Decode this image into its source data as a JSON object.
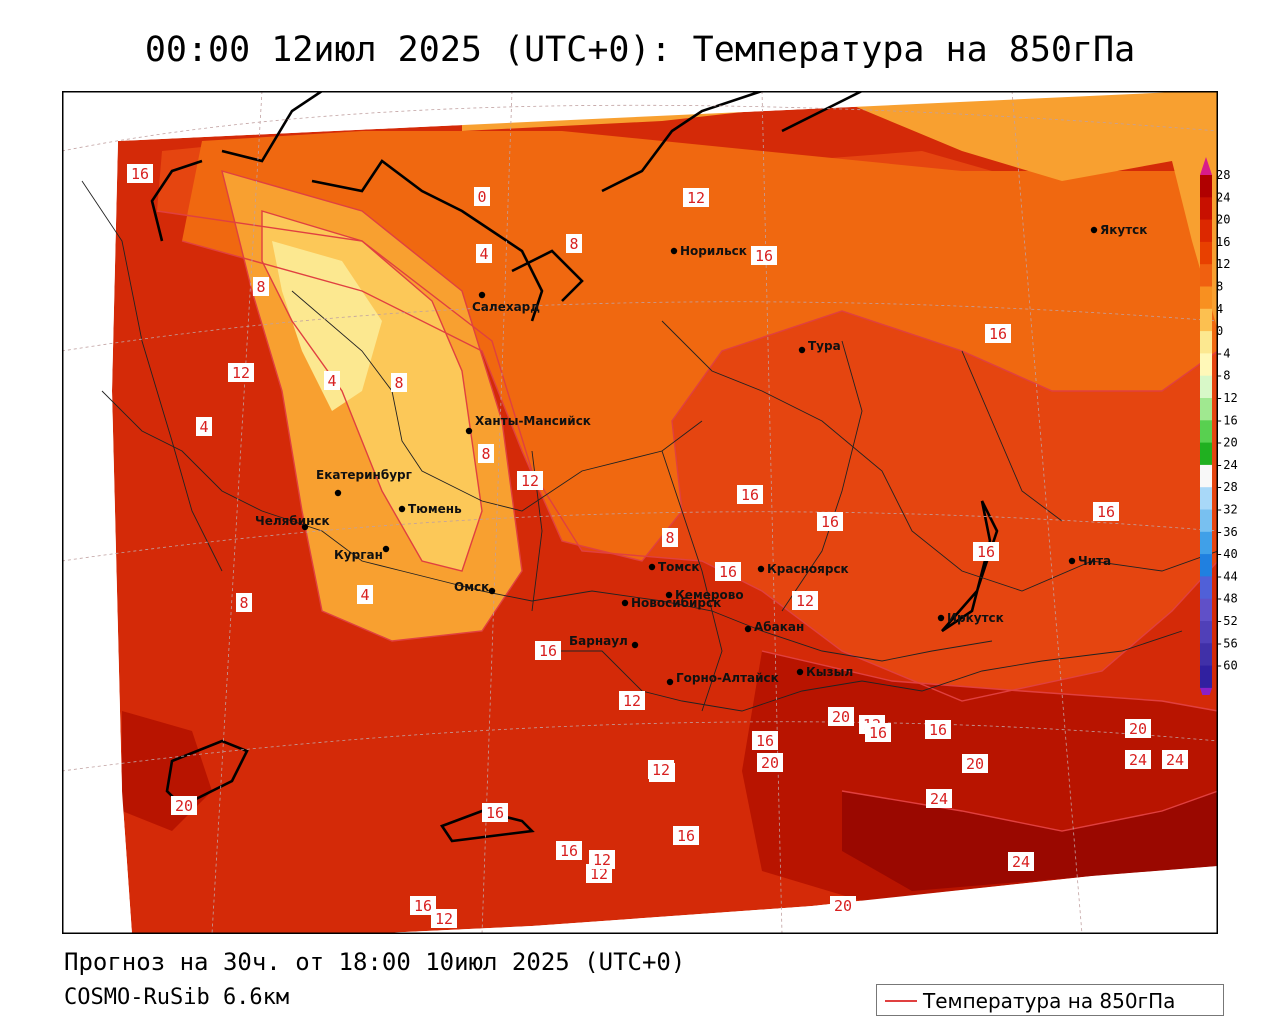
{
  "title": "00:00 12июл 2025 (UTC+0): Температура на 850гПа",
  "footer": {
    "forecast": "Прогноз на 30ч. от 18:00 10июл 2025 (UTC+0)",
    "model": "COSMO-RuSib 6.6км"
  },
  "legend": {
    "label": "Температура на 850гПа"
  },
  "colors": {
    "border": "#000000",
    "isoline": "#e04040",
    "city_dot": "#000000"
  },
  "colorbar": {
    "ticks": [
      "28",
      "24",
      "20",
      "16",
      "12",
      "8",
      "4",
      "0",
      "-4",
      "-8",
      "-12",
      "-16",
      "-20",
      "-24",
      "-28",
      "-32",
      "-36",
      "-40",
      "-44",
      "-48",
      "-52",
      "-56",
      "-60"
    ],
    "colors": [
      "#b00000",
      "#c81000",
      "#dc2800",
      "#e84000",
      "#f06010",
      "#f89020",
      "#fcc050",
      "#fce890",
      "#fff8b8",
      "#d8f8c8",
      "#a0e890",
      "#58d050",
      "#20b020",
      "#f8f8f8",
      "#a8d8f8",
      "#78c0f0",
      "#40a0e8",
      "#2080e0",
      "#5060d8",
      "#6050c8",
      "#5040b8",
      "#4030a8",
      "#3020a0"
    ]
  },
  "cities": [
    {
      "name": "Норильск",
      "label": "Норильск"
    },
    {
      "name": "Якутск",
      "label": "Якутск"
    },
    {
      "name": "Салехард",
      "label": "Салехард"
    },
    {
      "name": "Тура",
      "label": "Тура"
    },
    {
      "name": "Ханты-Мансийск",
      "label": "Ханты-Мансийск"
    },
    {
      "name": "Екатеринбург",
      "label": "Екатеринбург"
    },
    {
      "name": "Тюмень",
      "label": "Тюмень"
    },
    {
      "name": "Челябинск",
      "label": "Челябинск"
    },
    {
      "name": "Курган",
      "label": "Курган"
    },
    {
      "name": "Омск",
      "label": "Омск"
    },
    {
      "name": "Томск",
      "label": "Томск"
    },
    {
      "name": "Новосибирск",
      "label": "Новосибирск"
    },
    {
      "name": "Кемерово",
      "label": "Кемерово"
    },
    {
      "name": "Красноярск",
      "label": "Красноярск"
    },
    {
      "name": "Барнаул",
      "label": "Барнаул"
    },
    {
      "name": "Абакан",
      "label": "Абакан"
    },
    {
      "name": "Горно-Алтайск",
      "label": "Горно-Алтайск"
    },
    {
      "name": "Кызыл",
      "label": "Кызыл"
    },
    {
      "name": "Иркутск",
      "label": "Иркутск"
    },
    {
      "name": "Чита",
      "label": "Чита"
    }
  ],
  "isotherm_labels": [
    "16",
    "8",
    "0",
    "4",
    "8",
    "8",
    "12",
    "4",
    "8",
    "12",
    "12",
    "16",
    "4",
    "4",
    "8",
    "8",
    "16",
    "16",
    "16",
    "12",
    "16",
    "16",
    "16",
    "16",
    "12",
    "16",
    "12",
    "16",
    "12",
    "12",
    "20",
    "16",
    "16",
    "20",
    "24",
    "20",
    "20",
    "12",
    "20",
    "24",
    "24",
    "16",
    "16",
    "24",
    "12",
    "20",
    "16",
    "12"
  ]
}
